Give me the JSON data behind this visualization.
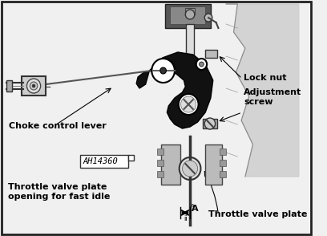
{
  "bg_color": "#f0f0f0",
  "border_color": "#222222",
  "labels": {
    "choke_control_lever": "Choke control lever",
    "lock_nut": "Lock nut",
    "adjustment_screw": "Adjustment\nscrew",
    "throttle_valve_opening": "Throttle valve plate\nopening for fast idle",
    "throttle_valve_plate": "Throttle valve plate",
    "part_number": "AH14360"
  },
  "figsize": [
    4.08,
    2.94
  ],
  "dpi": 100
}
